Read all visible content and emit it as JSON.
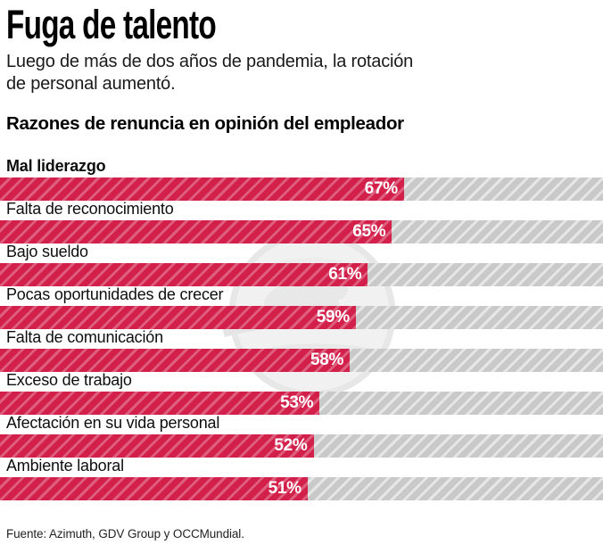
{
  "header": {
    "title": "Fuga de talento",
    "subtitle_line1": "Luego de más de dos años de pandemia, la rotación",
    "subtitle_line2": "de personal aumentó."
  },
  "section": {
    "heading": "Razones de renuncia en opinión del empleador"
  },
  "chart_data": {
    "type": "bar",
    "orientation": "horizontal",
    "title": "Razones de renuncia en opinión del empleador",
    "unit": "%",
    "xlim": [
      0,
      100
    ],
    "grid": false,
    "legend": "none",
    "categories": [
      "Mal liderazgo",
      "Falta de reconocimiento",
      "Bajo sueldo",
      "Pocas oportunidades de crecer",
      "Falta de comunicación",
      "Exceso de trabajo",
      "Afectación en su vida personal",
      "Ambiente laboral"
    ],
    "values": [
      67,
      65,
      61,
      59,
      58,
      53,
      52,
      51
    ],
    "bars": [
      {
        "label": "Mal liderazgo",
        "value": 67,
        "value_label": "67%",
        "emphasis": true
      },
      {
        "label": "Falta de reconocimiento",
        "value": 65,
        "value_label": "65%",
        "emphasis": false
      },
      {
        "label": "Bajo sueldo",
        "value": 61,
        "value_label": "61%",
        "emphasis": false
      },
      {
        "label": "Pocas oportunidades de crecer",
        "value": 59,
        "value_label": "59%",
        "emphasis": false
      },
      {
        "label": "Falta de comunicación",
        "value": 58,
        "value_label": "58%",
        "emphasis": false
      },
      {
        "label": "Exceso de trabajo",
        "value": 53,
        "value_label": "53%",
        "emphasis": false
      },
      {
        "label": "Afectación en su vida personal",
        "value": 52,
        "value_label": "52%",
        "emphasis": false
      },
      {
        "label": "Ambiente laboral",
        "value": 51,
        "value_label": "51%",
        "emphasis": false
      }
    ],
    "colors": {
      "bar_fill": "#d2204b",
      "bar_track": "#c9c9c9",
      "value_text": "#ffffff",
      "watermark": "#ededed"
    }
  },
  "footer": {
    "source": "Fuente: Azimuth, GDV Group y OCCMundial."
  }
}
